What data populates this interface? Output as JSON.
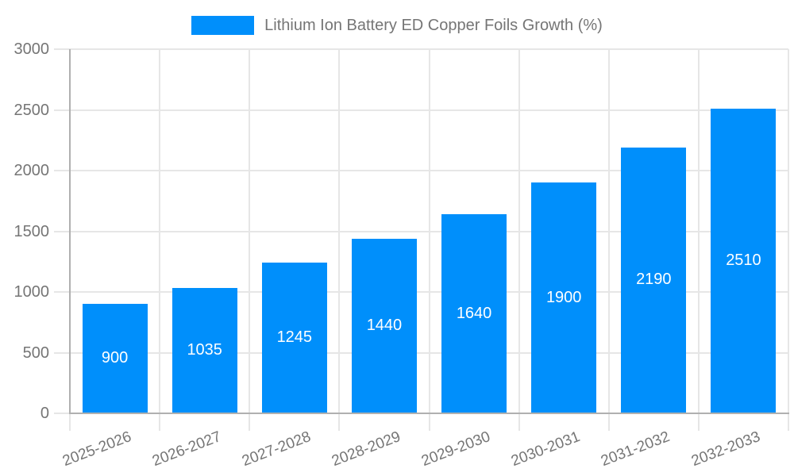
{
  "chart_data": {
    "type": "bar",
    "title": "Lithium Ion Battery ED Copper Foils Growth (%)",
    "xlabel": "",
    "ylabel": "",
    "categories": [
      "2025-2026",
      "2026-2027",
      "2027-2028",
      "2028-2029",
      "2029-2030",
      "2030-2031",
      "2031-2032",
      "2032-2033"
    ],
    "values": [
      900,
      1035,
      1245,
      1440,
      1640,
      1900,
      2190,
      2510
    ],
    "ylim": [
      0,
      3000
    ],
    "yticks": [
      0,
      500,
      1000,
      1500,
      2000,
      2500,
      3000
    ],
    "grid": true,
    "legend_position": "top-center",
    "bar_color": "#008FFB",
    "value_label_color": "#ffffff",
    "tick_label_color": "#757575",
    "legend_text_color": "#757575",
    "grid_color": "#e6e6e6",
    "axis_color": "#b0b0b0",
    "background_color": "#ffffff"
  }
}
